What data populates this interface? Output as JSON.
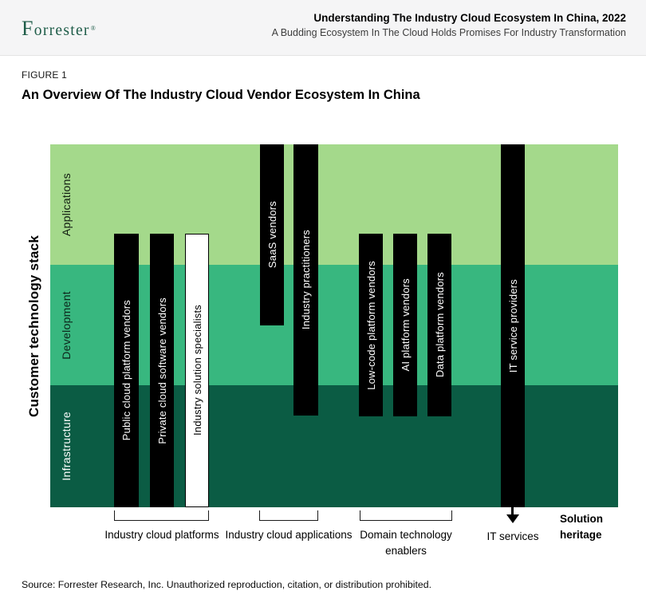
{
  "header": {
    "logo_text": "Forrester",
    "registered_mark": "®",
    "logo_color": "#1e5c48",
    "report_title": "Understanding The Industry Cloud Ecosystem In China, 2022",
    "report_subtitle": "A Budding Ecosystem In The Cloud Holds Promises For Industry Transformation"
  },
  "figure": {
    "label": "FIGURE 1",
    "title": "An Overview Of The Industry Cloud Vendor Ecosystem In China"
  },
  "diagram": {
    "y_axis_label": "Customer technology stack",
    "x_axis_label": "Solution heritage",
    "layers": [
      {
        "name": "Applications",
        "color": "#a4d98b",
        "text_color": "#101c10"
      },
      {
        "name": "Development",
        "color": "#38b77f",
        "text_color": "#0c241a"
      },
      {
        "name": "Infrastructure",
        "color": "#0b5c44",
        "text_color": "#ffffff"
      }
    ],
    "bars": [
      {
        "label": "Public cloud platform vendors",
        "fill": "#000000",
        "text_color": "#ffffff",
        "outlined": false,
        "group": "Industry cloud platforms",
        "layers_spanned": [
          "Applications",
          "Development",
          "Infrastructure"
        ]
      },
      {
        "label": "Private cloud software vendors",
        "fill": "#000000",
        "text_color": "#ffffff",
        "outlined": false,
        "group": "Industry cloud platforms",
        "layers_spanned": [
          "Applications",
          "Development",
          "Infrastructure"
        ]
      },
      {
        "label": "Industry solution specialists",
        "fill": "#ffffff",
        "text_color": "#000000",
        "outlined": true,
        "group": "Industry cloud platforms",
        "layers_spanned": [
          "Applications",
          "Development",
          "Infrastructure"
        ]
      },
      {
        "label": "SaaS vendors",
        "fill": "#000000",
        "text_color": "#ffffff",
        "outlined": false,
        "group": "Industry cloud applications",
        "layers_spanned": [
          "Applications",
          "Development"
        ]
      },
      {
        "label": "Industry practitioners",
        "fill": "#000000",
        "text_color": "#ffffff",
        "outlined": false,
        "group": "Industry cloud applications",
        "layers_spanned": [
          "Applications",
          "Development",
          "Infrastructure"
        ]
      },
      {
        "label": "Low-code platform vendors",
        "fill": "#000000",
        "text_color": "#ffffff",
        "outlined": false,
        "group": "Domain technology enablers",
        "layers_spanned": [
          "Applications",
          "Development",
          "Infrastructure"
        ]
      },
      {
        "label": "AI platform vendors",
        "fill": "#000000",
        "text_color": "#ffffff",
        "outlined": false,
        "group": "Domain technology enablers",
        "layers_spanned": [
          "Applications",
          "Development",
          "Infrastructure"
        ]
      },
      {
        "label": "Data platform vendors",
        "fill": "#000000",
        "text_color": "#ffffff",
        "outlined": false,
        "group": "Domain technology enablers",
        "layers_spanned": [
          "Applications",
          "Development",
          "Infrastructure"
        ]
      },
      {
        "label": "IT service providers",
        "fill": "#000000",
        "text_color": "#ffffff",
        "outlined": false,
        "group": "IT services",
        "layers_spanned": [
          "Applications",
          "Development",
          "Infrastructure"
        ]
      }
    ],
    "groups": [
      {
        "label": "Industry cloud platforms",
        "marker": "bracket"
      },
      {
        "label": "Industry cloud applications",
        "marker": "bracket"
      },
      {
        "label": "Domain technology enablers",
        "marker": "bracket"
      },
      {
        "label": "IT services",
        "marker": "arrow"
      }
    ]
  },
  "source_note": "Source: Forrester Research, Inc. Unauthorized reproduction, citation, or distribution prohibited."
}
